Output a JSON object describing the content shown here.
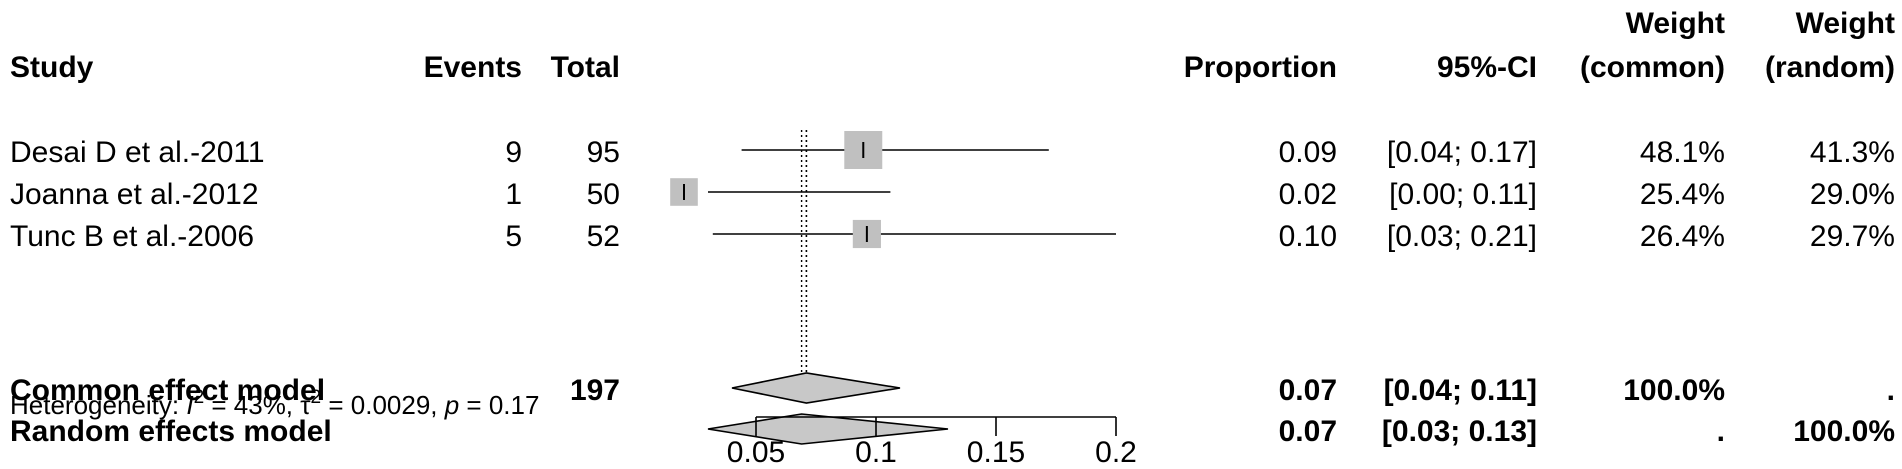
{
  "chart_data": {
    "type": "forest",
    "columns": {
      "study": "Study",
      "events": "Events",
      "total": "Total",
      "proportion": "Proportion",
      "ci": "95%-CI",
      "weight_common_1": "Weight",
      "weight_common_2": "(common)",
      "weight_random_1": "Weight",
      "weight_random_2": "(random)"
    },
    "studies": [
      {
        "name": "Desai D et al.-2011",
        "events": "9",
        "total": "95",
        "proportion": "0.09",
        "ci": "[0.04; 0.17]",
        "weight_common": "48.1%",
        "weight_random": "41.3%",
        "est": 0.0947,
        "lower": 0.044,
        "upper": 0.172
      },
      {
        "name": "Joanna et  al.-2012",
        "events": "1",
        "total": "50",
        "proportion": "0.02",
        "ci": "[0.00; 0.11]",
        "weight_common": "25.4%",
        "weight_random": "29.0%",
        "est": 0.02,
        "lower": 0.0,
        "upper": 0.106
      },
      {
        "name": "Tunc B et al.-2006",
        "events": "5",
        "total": "52",
        "proportion": "0.10",
        "ci": "[0.03; 0.21]",
        "weight_common": "26.4%",
        "weight_random": "29.7%",
        "est": 0.0962,
        "lower": 0.032,
        "upper": 0.21
      }
    ],
    "models": [
      {
        "name": "Common effect model",
        "total": "197",
        "proportion": "0.07",
        "ci": "[0.04; 0.11]",
        "weight_common": "100.0%",
        "weight_random": ".",
        "est": 0.071,
        "lower": 0.04,
        "upper": 0.11
      },
      {
        "name": "Random effects model",
        "total": "",
        "proportion": "0.07",
        "ci": "[0.03; 0.13]",
        "weight_common": ".",
        "weight_random": "100.0%",
        "est": 0.069,
        "lower": 0.03,
        "upper": 0.13
      }
    ],
    "heterogeneity": {
      "prefix": "Heterogeneity: ",
      "i_symbol": "I",
      "i_value": " = 43%, ",
      "tau_symbol": "τ",
      "tau_value": " = 0.0029, ",
      "p_symbol": "p",
      "p_value": " = 0.17",
      "sup": "2"
    },
    "x_axis": {
      "range": [
        0.03,
        0.2
      ],
      "ticks": [
        0.05,
        0.1,
        0.15,
        0.2
      ],
      "tick_labels": [
        "0.05",
        "0.1",
        "0.15",
        "0.2"
      ]
    },
    "colors": {
      "box": "#c0c0c0",
      "diamond": "#c8c8c8",
      "line": "#000000"
    }
  }
}
